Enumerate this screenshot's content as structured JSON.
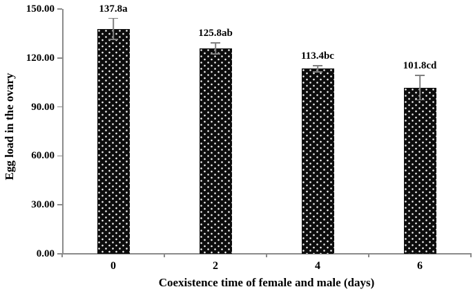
{
  "chart_data": {
    "type": "bar",
    "title": "",
    "xlabel": "Coexistence time of female and male (days)",
    "ylabel": "Egg load in the ovary",
    "categories": [
      "0",
      "2",
      "4",
      "6"
    ],
    "values": [
      137.8,
      125.8,
      113.4,
      101.8
    ],
    "errors": [
      6.8,
      3.8,
      2.2,
      7.9
    ],
    "bar_labels": [
      "137.8a",
      "125.8ab",
      "113.4bc",
      "101.8cd"
    ],
    "ylim": [
      0,
      150
    ],
    "ytick_step": 30,
    "ytick_labels": [
      "0.00",
      "30.00",
      "60.00",
      "90.00",
      "120.00",
      "150.00"
    ],
    "grid": false,
    "legend": "none",
    "colors": {
      "bar_fill": "#0d0d0d",
      "bar_dots": "#ffffff",
      "axis": "#8a8a8a",
      "error_bar": "#7f7f7f",
      "text": "#000000",
      "background": "#ffffff"
    }
  }
}
